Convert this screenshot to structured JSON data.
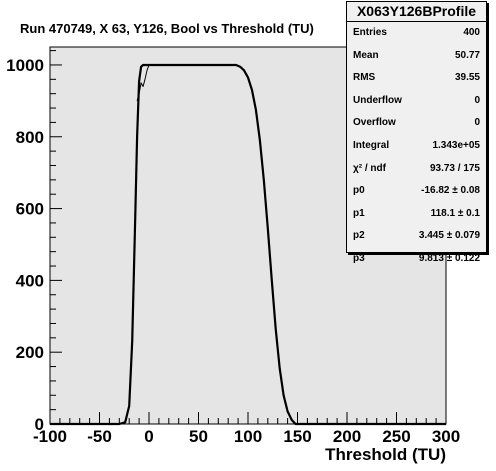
{
  "chart_data": {
    "type": "line",
    "title": "Run 470749, X 63, Y126, Bool vs Threshold (TU)",
    "xlabel": "Threshold (TU)",
    "ylabel": "",
    "xlim": [
      -100,
      300
    ],
    "ylim": [
      0,
      1050
    ],
    "grid": false,
    "x_ticks": [
      "-100",
      "-50",
      "0",
      "50",
      "100",
      "150",
      "200",
      "250",
      "300"
    ],
    "y_ticks": [
      "0",
      "200",
      "400",
      "600",
      "800",
      "1000"
    ],
    "series": [
      {
        "x": [
          -100,
          -30,
          -24,
          -20,
          -17,
          -14,
          -12,
          -10,
          -8,
          -6,
          -4,
          0,
          50,
          88,
          92,
          96,
          100,
          104,
          108,
          112,
          116,
          120,
          124,
          128,
          132,
          136,
          140,
          144,
          148,
          300
        ],
        "y": [
          0,
          0,
          5,
          50,
          230,
          560,
          800,
          955,
          995,
          1000,
          1000,
          1000,
          1000,
          1000,
          995,
          985,
          965,
          930,
          875,
          790,
          680,
          545,
          400,
          265,
          155,
          80,
          35,
          12,
          0,
          0
        ]
      },
      {
        "x": [
          -12,
          -10,
          -8,
          -6,
          -4,
          -2,
          0
        ],
        "y": [
          900,
          920,
          950,
          940,
          960,
          985,
          1000
        ]
      }
    ]
  },
  "stats": {
    "title": "X063Y126BProfile",
    "rows": [
      {
        "k": "Entries",
        "v": "400"
      },
      {
        "k": "Mean",
        "v": "50.77"
      },
      {
        "k": "RMS",
        "v": "39.55"
      },
      {
        "k": "Underflow",
        "v": "0"
      },
      {
        "k": "Overflow",
        "v": "0"
      },
      {
        "k": "Integral",
        "v": "1.343e+05"
      },
      {
        "k": "χ² / ndf",
        "v": "93.73 / 175"
      },
      {
        "k": "p0",
        "v": "-16.82 ± 0.08"
      },
      {
        "k": "p1",
        "v": "118.1 ± 0.1"
      },
      {
        "k": "p2",
        "v": "3.445 ± 0.079"
      },
      {
        "k": "p3",
        "v": "9.813 ± 0.122"
      }
    ]
  }
}
